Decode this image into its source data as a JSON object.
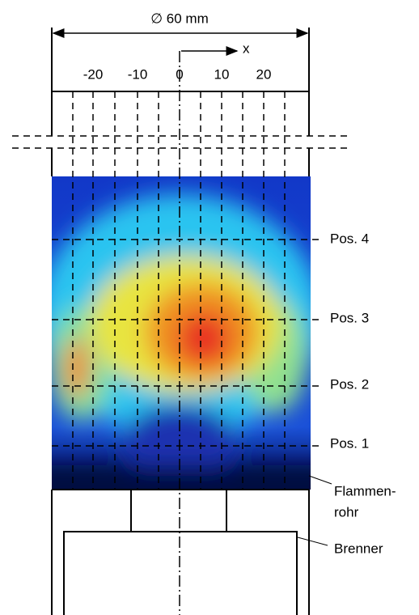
{
  "dimension": {
    "label": "∅ 60 mm"
  },
  "axis": {
    "label": "x",
    "ticks": [
      "-20",
      "-10",
      "0",
      "10",
      "20"
    ]
  },
  "positions": [
    "Pos. 4",
    "Pos. 3",
    "Pos. 2",
    "Pos. 1"
  ],
  "labels": {
    "flame_tube": [
      "Flammen-",
      "rohr"
    ],
    "burner": "Brenner"
  }
}
